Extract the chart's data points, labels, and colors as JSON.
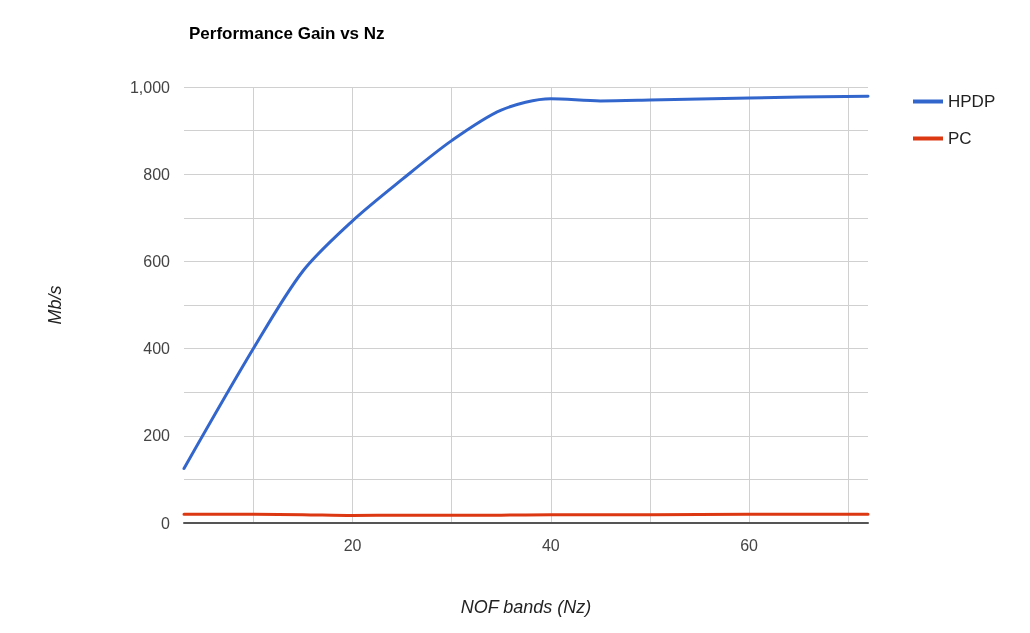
{
  "chart_data": {
    "type": "line",
    "title": "Performance Gain vs Nz",
    "xlabel": "NOF bands (Nz)",
    "ylabel": "Mb/s",
    "x": [
      3,
      10,
      15,
      20,
      25,
      30,
      35,
      40,
      45,
      50,
      60,
      72
    ],
    "series": [
      {
        "name": "HPDP",
        "color": "#3366cc",
        "values": [
          125,
          400,
          578,
          693,
          788,
          877,
          947,
          973,
          968,
          970,
          975,
          979
        ]
      },
      {
        "name": "PC",
        "color": "#dc3912",
        "values": [
          20,
          20,
          19,
          17,
          18,
          18,
          18,
          19,
          19,
          19,
          20,
          20
        ]
      }
    ],
    "xlim": [
      3,
      72
    ],
    "xticks": [
      {
        "value": 10,
        "label": null
      },
      20,
      {
        "value": 30,
        "label": null
      },
      40,
      {
        "value": 50,
        "label": null
      },
      60,
      {
        "value": 70,
        "label": null
      }
    ],
    "ylim": [
      0,
      1000
    ],
    "yticks": [
      0,
      {
        "value": 100,
        "label": null
      },
      200,
      {
        "value": 300,
        "label": null
      },
      400,
      {
        "value": 500,
        "label": null
      },
      600,
      {
        "value": 700,
        "label": null
      },
      800,
      {
        "value": 900,
        "label": null
      },
      {
        "value": 1000,
        "label": "1,000"
      }
    ],
    "grid": true,
    "legend": "top right",
    "marker": "none",
    "line_style": "solid"
  }
}
